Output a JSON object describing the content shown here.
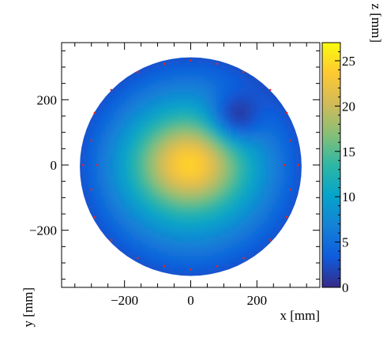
{
  "chart_data": {
    "type": "heatmap",
    "title": "",
    "xlabel": "x [mm]",
    "ylabel": "y [mm]",
    "zlabel": "z [mm]",
    "xlim": [
      -390,
      390
    ],
    "ylim": [
      -375,
      375
    ],
    "zlim": [
      0,
      27
    ],
    "x_ticks": [
      -200,
      0,
      200
    ],
    "x_tick_labels": [
      "−200",
      "0",
      "200"
    ],
    "y_ticks": [
      -200,
      0,
      200
    ],
    "y_tick_labels": [
      "−200",
      "0",
      "200"
    ],
    "z_ticks": [
      0,
      5,
      10,
      15,
      20,
      25
    ],
    "z_tick_labels": [
      "0",
      "5",
      "10",
      "15",
      "20",
      "25"
    ],
    "region": {
      "shape": "circle",
      "center": [
        0,
        -5
      ],
      "radius": 335
    },
    "peaks": [
      {
        "x": -5,
        "y": 5,
        "z": 24
      },
      {
        "x": 130,
        "y": 140,
        "z": 6
      }
    ],
    "measurement_points": [
      [
        -325,
        0
      ],
      [
        -283,
        0
      ],
      [
        -300,
        75
      ],
      [
        -300,
        -75
      ],
      [
        -290,
        160
      ],
      [
        -290,
        -160
      ],
      [
        -240,
        230
      ],
      [
        -240,
        -230
      ],
      [
        -160,
        285
      ],
      [
        -160,
        -285
      ],
      [
        -80,
        310
      ],
      [
        -80,
        -310
      ],
      [
        0,
        320
      ],
      [
        0,
        -320
      ],
      [
        80,
        310
      ],
      [
        80,
        -310
      ],
      [
        160,
        285
      ],
      [
        160,
        -285
      ],
      [
        240,
        230
      ],
      [
        240,
        -230
      ],
      [
        290,
        160
      ],
      [
        290,
        -160
      ],
      [
        300,
        75
      ],
      [
        300,
        -75
      ],
      [
        325,
        0
      ],
      [
        283,
        0
      ]
    ],
    "colorscale": [
      "#352a87",
      "#0f5cdd",
      "#1481d6",
      "#06a4ca",
      "#2eb7a4",
      "#87bf77",
      "#d1bb59",
      "#fec832",
      "#f9fb0e"
    ],
    "grid": false
  }
}
